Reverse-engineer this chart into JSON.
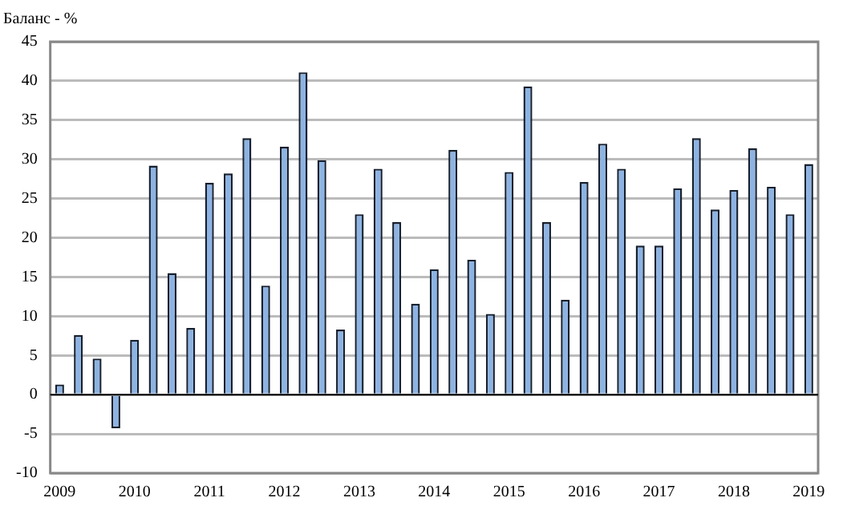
{
  "chart_data": {
    "type": "bar",
    "ylabel": "Баланс - %",
    "categories": [
      "2009",
      null,
      null,
      null,
      "2010",
      null,
      null,
      null,
      "2011",
      null,
      null,
      null,
      "2012",
      null,
      null,
      null,
      "2013",
      null,
      null,
      null,
      "2014",
      null,
      null,
      null,
      "2015",
      null,
      null,
      null,
      "2016",
      null,
      null,
      null,
      "2017",
      null,
      null,
      null,
      "2018",
      null,
      null,
      null,
      "2019"
    ],
    "values": [
      1.3,
      7.6,
      4.6,
      -4.3,
      7.0,
      29.2,
      15.5,
      8.5,
      27.0,
      28.2,
      32.7,
      13.9,
      31.6,
      41.1,
      29.9,
      8.3,
      23.0,
      28.8,
      22.0,
      11.6,
      16.0,
      31.2,
      17.2,
      10.3,
      28.4,
      39.3,
      22.0,
      12.1,
      27.1,
      32.0,
      28.8,
      19.0,
      19.0,
      26.3,
      32.7,
      23.6,
      26.1,
      31.4,
      26.5,
      23.0,
      29.4
    ],
    "color": "#8db3e2",
    "ylim": [
      -10,
      45
    ],
    "yticks": [
      -10,
      -5,
      0,
      5,
      10,
      15,
      20,
      25,
      30,
      35,
      40,
      45
    ],
    "grid": "y",
    "legend": false
  }
}
